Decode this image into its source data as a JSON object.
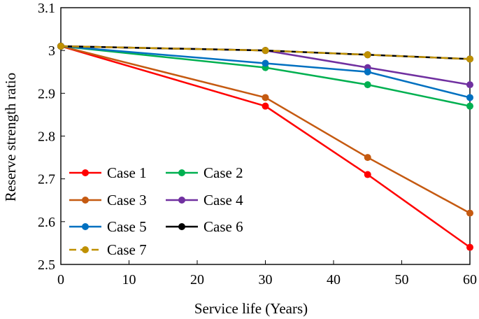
{
  "chart_data": {
    "type": "line",
    "title": "",
    "xlabel": "Service life (Years)",
    "ylabel": "Reserve strength ratio",
    "xlim": [
      0,
      60
    ],
    "ylim": [
      2.5,
      3.1
    ],
    "xticks": [
      0,
      10,
      20,
      30,
      40,
      50,
      60
    ],
    "yticks": [
      2.5,
      2.6,
      2.7,
      2.8,
      2.9,
      3.0,
      3.1
    ],
    "xtick_labels": [
      "0",
      "10",
      "20",
      "30",
      "40",
      "50",
      "60"
    ],
    "ytick_labels": [
      "2.5",
      "2.6",
      "2.7",
      "2.8",
      "2.9",
      "3",
      "3.1"
    ],
    "grid": false,
    "legend_position": "bottom-left",
    "x": [
      0,
      30,
      45,
      60
    ],
    "series": [
      {
        "name": "Case 1",
        "values": [
          3.01,
          2.87,
          2.71,
          2.54
        ],
        "color": "#ff0000",
        "dash": "solid"
      },
      {
        "name": "Case 2",
        "values": [
          3.01,
          2.96,
          2.92,
          2.87
        ],
        "color": "#00b050",
        "dash": "solid"
      },
      {
        "name": "Case 3",
        "values": [
          3.01,
          2.89,
          2.75,
          2.62
        ],
        "color": "#c55a11",
        "dash": "solid"
      },
      {
        "name": "Case 4",
        "values": [
          3.01,
          3.0,
          2.96,
          2.92
        ],
        "color": "#7030a0",
        "dash": "solid"
      },
      {
        "name": "Case 5",
        "values": [
          3.01,
          2.97,
          2.95,
          2.89
        ],
        "color": "#0070c0",
        "dash": "solid"
      },
      {
        "name": "Case 6",
        "values": [
          3.01,
          3.0,
          2.99,
          2.98
        ],
        "color": "#000000",
        "dash": "solid"
      },
      {
        "name": "Case 7",
        "values": [
          3.01,
          3.0,
          2.99,
          2.98
        ],
        "color": "#bf9000",
        "dash": "dashed"
      }
    ]
  }
}
